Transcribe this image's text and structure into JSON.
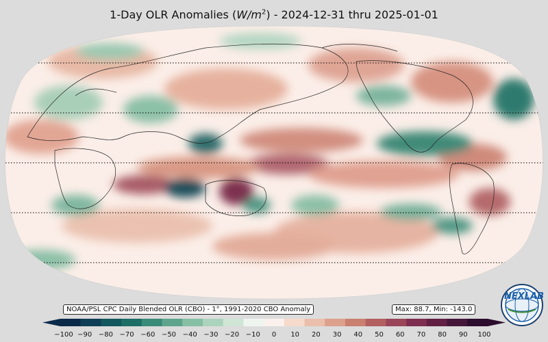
{
  "title": {
    "prefix": "1-Day OLR Anomalies (",
    "unit_base": "W/m",
    "unit_exp": "2",
    "suffix": ") - 2024-12-31 thru 2025-01-01"
  },
  "source_label": "NOAA/PSL CPC Daily Blended OLR (CBO) - 1°, 1991-2020 CBO Anomaly",
  "stats_label": "Max: 88.7,  Min: -143.0",
  "colorbar": {
    "ticks": [
      "−100",
      "−90",
      "−80",
      "−70",
      "−60",
      "−50",
      "−40",
      "−30",
      "−20",
      "−10",
      "0",
      "10",
      "20",
      "30",
      "40",
      "50",
      "60",
      "70",
      "80",
      "90",
      "100"
    ],
    "colors": [
      "#0b2a4a",
      "#0f3f57",
      "#13575e",
      "#1d6e66",
      "#3a8a78",
      "#5fa58e",
      "#86bfa4",
      "#acd3bd",
      "#cfe5d6",
      "#eef5ef",
      "#fbf1ec",
      "#f6dacb",
      "#eabfab",
      "#dca08c",
      "#c98070",
      "#b36061",
      "#9a4559",
      "#7e2f50",
      "#612044",
      "#45163a",
      "#2c0d2d"
    ],
    "range": [
      -100,
      100
    ]
  },
  "logo": {
    "text": "NEXLAB",
    "icon": "globe-logo-icon"
  },
  "parallels": [
    "60N",
    "30N",
    "Equator",
    "30S",
    "60S"
  ]
}
